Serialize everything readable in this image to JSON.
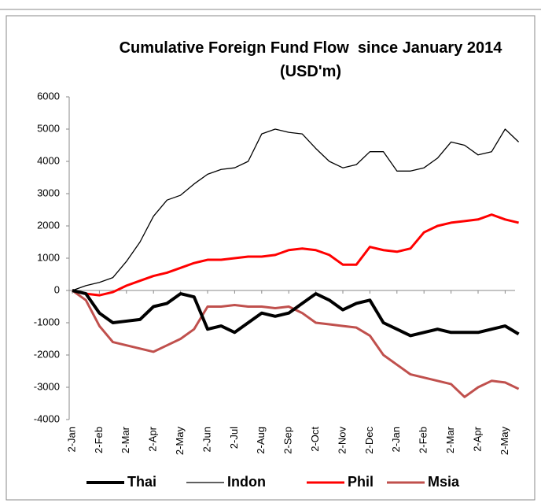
{
  "chart_data": {
    "type": "line",
    "title": "Cumulative Foreign Fund Flow  since January 2014 (USD'm)",
    "categories": [
      "2-Jan",
      null,
      "2-Feb",
      null,
      "2-Mar",
      null,
      "2-Apr",
      null,
      "2-May",
      null,
      "2-Jun",
      null,
      "2-Jul",
      null,
      "2-Aug",
      null,
      "2-Sep",
      null,
      "2-Oct",
      null,
      "2-Nov",
      null,
      "2-Dec",
      null,
      "2-Jan",
      null,
      "2-Feb",
      null,
      "2-Mar",
      null,
      "2-Apr",
      null,
      "2-May",
      null
    ],
    "series": [
      {
        "name": "Thai",
        "color": "#000000",
        "width": 4,
        "values": [
          0,
          -100,
          -700,
          -1000,
          -950,
          -900,
          -500,
          -400,
          -100,
          -200,
          -1200,
          -1100,
          -1300,
          -1000,
          -700,
          -800,
          -700,
          -400,
          -100,
          -300,
          -600,
          -400,
          -300,
          -1000,
          -1200,
          -1400,
          -1300,
          -1200,
          -1300,
          -1300,
          -1300,
          -1200,
          -1100,
          -1350
        ]
      },
      {
        "name": "Indon",
        "color": "#000000",
        "width": 1.3,
        "values": [
          0,
          150,
          250,
          400,
          900,
          1500,
          2300,
          2800,
          2950,
          3300,
          3600,
          3750,
          3800,
          4000,
          4850,
          5000,
          4900,
          4850,
          4400,
          4000,
          3800,
          3900,
          4300,
          4300,
          3700,
          3700,
          3800,
          4100,
          4600,
          4500,
          4200,
          4300,
          5000,
          4600
        ]
      },
      {
        "name": "Phil",
        "color": "#ff0000",
        "width": 3,
        "values": [
          0,
          -100,
          -150,
          -50,
          150,
          300,
          450,
          550,
          700,
          850,
          950,
          950,
          1000,
          1050,
          1050,
          1100,
          1250,
          1300,
          1250,
          1100,
          800,
          800,
          1350,
          1250,
          1200,
          1300,
          1800,
          2000,
          2100,
          2150,
          2200,
          2350,
          2200,
          2100
        ]
      },
      {
        "name": "Msia",
        "color": "#c0504d",
        "width": 3,
        "values": [
          0,
          -300,
          -1100,
          -1600,
          -1700,
          -1800,
          -1900,
          -1700,
          -1500,
          -1200,
          -500,
          -500,
          -450,
          -500,
          -500,
          -550,
          -500,
          -700,
          -1000,
          -1050,
          -1100,
          -1150,
          -1400,
          -2000,
          -2300,
          -2600,
          -2700,
          -2800,
          -2900,
          -3300,
          -3000,
          -2800,
          -2850,
          -3050
        ]
      }
    ],
    "ylim": [
      -4000,
      6000
    ],
    "yticks": [
      -4000,
      -3000,
      -2000,
      -1000,
      0,
      1000,
      2000,
      3000,
      4000,
      5000,
      6000
    ],
    "grid": false,
    "legend": "bottom"
  }
}
